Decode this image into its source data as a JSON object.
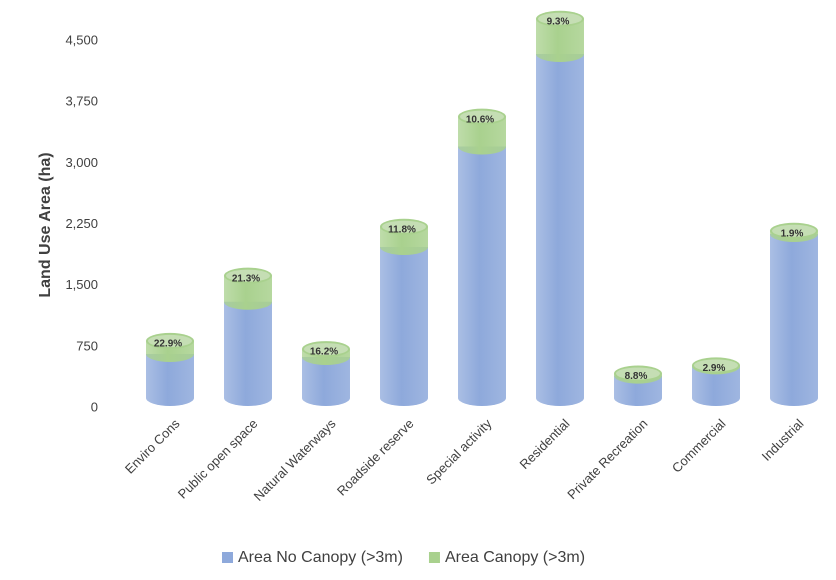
{
  "chart_data": {
    "type": "cylinder_stacked_bar",
    "y_label": "Land Use Area (ha)",
    "categories": [
      "Enviro Cons",
      "Public open space",
      "Natural Waterways",
      "Roadside reserve",
      "Special activity",
      "Residential",
      "Private Recreation",
      "Commercial",
      "Industrial"
    ],
    "series": [
      {
        "name": "Area No Canopy (>3m)",
        "color": "#8ea9db",
        "values": [
          540,
          1180,
          503,
          1852,
          3084,
          4218,
          274,
          388,
          2011
        ]
      },
      {
        "name": "Area Canopy (>3m)",
        "color": "#a9d18e",
        "values": [
          160,
          320,
          97,
          248,
          366,
          432,
          26,
          12,
          39
        ]
      }
    ],
    "annotations": [
      "22.9%",
      "21.3%",
      "16.2%",
      "11.8%",
      "10.6%",
      "9.3%",
      "8.8%",
      "2.9%",
      "1.9%"
    ],
    "ylim": [
      0,
      4500
    ],
    "yticks": [
      0,
      750,
      {
        "value": 1500,
        "label": "1,500"
      },
      {
        "value": 2250,
        "label": "2,250"
      },
      {
        "value": 3000,
        "label": "3,000"
      },
      {
        "value": 3750,
        "label": "3,750"
      },
      {
        "value": 4500,
        "label": "4,500"
      }
    ],
    "legend": "bottom"
  }
}
